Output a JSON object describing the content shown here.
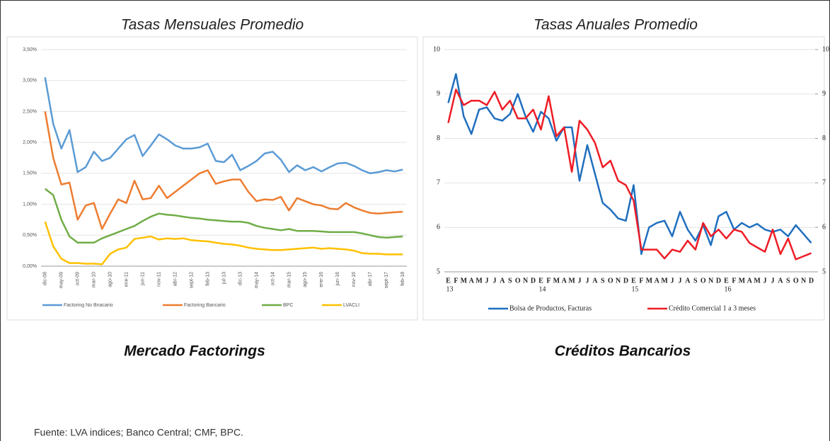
{
  "chart_data": [
    {
      "type": "line",
      "title": "Tasas Mensuales Promedio",
      "categories": [
        "dic-08",
        null,
        "may-09",
        null,
        "oct-09",
        null,
        "mar-10",
        null,
        "ago-10",
        null,
        "ene-11",
        null,
        "jun-11",
        null,
        "nov-11",
        null,
        "abr-12",
        null,
        "sept-12",
        null,
        "feb-13",
        null,
        "jul-13",
        null,
        "dic-13",
        null,
        "may-14",
        null,
        "oct-14",
        null,
        "mar-15",
        null,
        "ago-15",
        null,
        "ene-16",
        null,
        "jun-16",
        null,
        "nov-16",
        null,
        "abr-17",
        null,
        "sept-17",
        null,
        "feb-18"
      ],
      "series": [
        {
          "name": "Factoring No Bnacario",
          "color": "#5b9bd5",
          "values": [
            3.05,
            2.3,
            1.9,
            2.2,
            1.52,
            1.6,
            1.85,
            1.7,
            1.75,
            1.9,
            2.05,
            2.12,
            1.78,
            1.95,
            2.13,
            2.05,
            1.95,
            1.9,
            1.9,
            1.92,
            1.98,
            1.7,
            1.68,
            1.8,
            1.55,
            1.62,
            1.7,
            1.82,
            1.85,
            1.72,
            1.52,
            1.63,
            1.55,
            1.6,
            1.53,
            1.6,
            1.66,
            1.67,
            1.62,
            1.55,
            1.5,
            1.52,
            1.55,
            1.53,
            1.56
          ]
        },
        {
          "name": "Factoring Bancario",
          "color": "#ed7d31",
          "values": [
            2.5,
            1.75,
            1.32,
            1.35,
            0.75,
            0.98,
            1.02,
            0.6,
            0.85,
            1.08,
            1.02,
            1.38,
            1.08,
            1.1,
            1.3,
            1.1,
            1.2,
            1.3,
            1.4,
            1.5,
            1.55,
            1.33,
            1.37,
            1.4,
            1.4,
            1.2,
            1.05,
            1.08,
            1.07,
            1.12,
            0.9,
            1.1,
            1.05,
            1.0,
            0.98,
            0.93,
            0.92,
            1.02,
            0.95,
            0.9,
            0.86,
            0.85,
            0.86,
            0.87,
            0.88
          ]
        },
        {
          "name": "BPC",
          "color": "#70ad47",
          "values": [
            1.25,
            1.15,
            0.75,
            0.48,
            0.38,
            0.38,
            0.38,
            0.45,
            0.5,
            0.55,
            0.6,
            0.65,
            0.73,
            0.8,
            0.85,
            0.83,
            0.82,
            0.8,
            0.78,
            0.77,
            0.75,
            0.74,
            0.73,
            0.72,
            0.72,
            0.7,
            0.65,
            0.62,
            0.6,
            0.58,
            0.6,
            0.57,
            0.57,
            0.57,
            0.56,
            0.55,
            0.55,
            0.55,
            0.55,
            0.53,
            0.5,
            0.47,
            0.46,
            0.47,
            0.48
          ]
        },
        {
          "name": "LVACLI",
          "color": "#ffc000",
          "values": [
            0.72,
            0.32,
            0.12,
            0.05,
            0.05,
            0.04,
            0.04,
            0.03,
            0.2,
            0.27,
            0.3,
            0.44,
            0.46,
            0.48,
            0.43,
            0.45,
            0.44,
            0.45,
            0.42,
            0.41,
            0.4,
            0.38,
            0.36,
            0.35,
            0.33,
            0.3,
            0.28,
            0.27,
            0.26,
            0.26,
            0.27,
            0.28,
            0.29,
            0.3,
            0.28,
            0.29,
            0.28,
            0.27,
            0.25,
            0.21,
            0.2,
            0.2,
            0.19,
            0.19,
            0.19
          ]
        }
      ],
      "ylim": [
        0,
        3.5
      ],
      "yticks": [
        {
          "value": 0,
          "label": "0,00%"
        },
        {
          "value": 0.5,
          "label": "0,50%"
        },
        {
          "value": 1,
          "label": "1,00%"
        },
        {
          "value": 1.5,
          "label": "1,50%"
        },
        {
          "value": 2,
          "label": "2,00%"
        },
        {
          "value": 2.5,
          "label": "2,50%"
        },
        {
          "value": 3,
          "label": "3,00%"
        },
        {
          "value": 3.5,
          "label": "3,50%"
        }
      ],
      "grid": true,
      "legend": "bottom",
      "caption": "Mercado Factorings"
    },
    {
      "type": "line",
      "title": "Tasas Anuales Promedio",
      "categories": [
        "E",
        "F",
        "M",
        "A",
        "M",
        "J",
        "J",
        "A",
        "S",
        "O",
        "N",
        "D",
        "E",
        "F",
        "M",
        "A",
        "M",
        "J",
        "J",
        "A",
        "S",
        "O",
        "N",
        "D",
        "E",
        "F",
        "M",
        "A",
        "M",
        "J",
        "J",
        "A",
        "S",
        "O",
        "N",
        "D",
        "E",
        "F",
        "M",
        "A",
        "M",
        "J",
        "J",
        "A",
        "S",
        "O",
        "N",
        "D"
      ],
      "years": [
        "13",
        "14",
        "15",
        "16"
      ],
      "series": [
        {
          "name": "Bolsa de Productos, Facturas",
          "color": "#1f6fbf",
          "values": [
            8.8,
            9.45,
            8.5,
            8.1,
            8.65,
            8.7,
            8.45,
            8.4,
            8.55,
            9.0,
            8.5,
            8.15,
            8.6,
            8.45,
            7.95,
            8.25,
            8.25,
            7.05,
            7.85,
            7.2,
            6.55,
            6.4,
            6.2,
            6.15,
            6.95,
            5.4,
            6.0,
            6.1,
            6.15,
            5.8,
            6.35,
            5.95,
            5.7,
            6.05,
            5.6,
            6.25,
            6.35,
            5.95,
            6.1,
            6.0,
            6.08,
            5.95,
            5.9,
            5.95,
            5.8,
            6.05,
            5.85,
            5.65
          ]
        },
        {
          "name": "Crédito Comercial 1 a 3 meses",
          "color": "#ee1c25",
          "axis": "y2",
          "values": [
            8.35,
            9.1,
            8.75,
            8.85,
            8.85,
            8.75,
            9.05,
            8.65,
            8.85,
            8.45,
            8.45,
            8.65,
            8.2,
            8.95,
            8.05,
            8.25,
            7.25,
            8.4,
            8.2,
            7.9,
            7.35,
            7.5,
            7.05,
            6.95,
            6.6,
            5.5,
            5.5,
            5.5,
            5.3,
            5.5,
            5.45,
            5.7,
            5.5,
            6.1,
            5.8,
            5.95,
            5.75,
            5.95,
            5.9,
            5.65,
            5.55,
            5.45,
            5.95,
            5.4,
            5.75,
            5.28,
            5.35,
            5.42
          ]
        }
      ],
      "ylim": [
        5,
        10
      ],
      "yticks": [
        5,
        6,
        7,
        8,
        9,
        10
      ],
      "y2lim": [
        5,
        10
      ],
      "y2ticks": [
        5,
        6,
        7,
        8,
        9,
        10
      ],
      "grid": true,
      "legend": "bottom",
      "caption": "Créditos Bancarios"
    }
  ],
  "source": "Fuente: LVA indices; Banco Central; CMF, BPC."
}
